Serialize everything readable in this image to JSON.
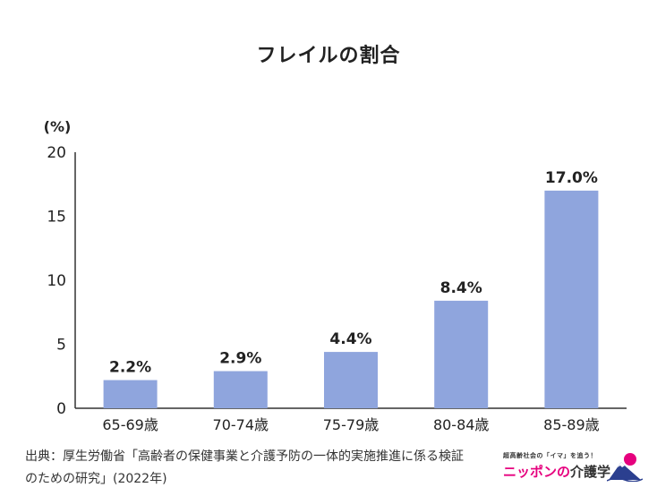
{
  "chart_data": {
    "type": "bar",
    "title": "フレイルの割合",
    "ylabel": "(%)",
    "categories": [
      "65-69歳",
      "70-74歳",
      "75-79歳",
      "80-84歳",
      "85-89歳"
    ],
    "values": [
      2.2,
      2.9,
      4.4,
      8.4,
      17.0
    ],
    "data_labels": [
      "2.2%",
      "2.9%",
      "4.4%",
      "8.4%",
      "17.0%"
    ],
    "yticks": [
      "0",
      "5",
      "10",
      "15",
      "20"
    ],
    "ylim": [
      0,
      20
    ],
    "bar_color": "#8fa5dd",
    "grid": false
  },
  "source": {
    "line1": "出典：厚生労働省「高齢者の保健事業と介護予防の一体的実施推進に係る検証",
    "line2": "のための研究」(2022年)"
  },
  "logo": {
    "tagline": "超高齢社会の「イマ」を追う！",
    "name_part1": "ニッポンの",
    "name_part2": "介護学"
  }
}
